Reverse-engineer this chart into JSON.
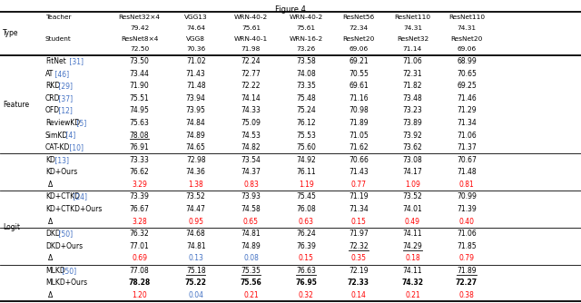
{
  "title": "Figure 4",
  "col_headers": [
    [
      "ResNet32×4",
      "VGG13",
      "WRN-40-2",
      "WRN-40-2",
      "ResNet56",
      "ResNet110",
      "ResNet110"
    ],
    [
      "79.42",
      "74.64",
      "75.61",
      "75.61",
      "72.34",
      "74.31",
      "74.31"
    ],
    [
      "ResNet8×4",
      "VGG8",
      "WRN-40-1",
      "WRN-16-2",
      "ResNet20",
      "ResNet32",
      "ResNet20"
    ],
    [
      "72.50",
      "70.36",
      "71.98",
      "73.26",
      "69.06",
      "71.14",
      "69.06"
    ]
  ],
  "rows": [
    {
      "method": "FitNet [31]",
      "ref_col": 7,
      "vals": [
        "73.50",
        "71.02",
        "72.24",
        "73.58",
        "69.21",
        "71.06",
        "68.99"
      ],
      "delta": false,
      "bold": [],
      "underline": [],
      "val_colors": [
        "k",
        "k",
        "k",
        "k",
        "k",
        "k",
        "k"
      ],
      "section": "Feature"
    },
    {
      "method": "AT [46]",
      "ref_col": 12,
      "vals": [
        "73.44",
        "71.43",
        "72.77",
        "74.08",
        "70.55",
        "72.31",
        "70.65"
      ],
      "delta": false,
      "bold": [],
      "underline": [],
      "val_colors": [
        "k",
        "k",
        "k",
        "k",
        "k",
        "k",
        "k"
      ],
      "section": "Feature"
    },
    {
      "method": "RKD [29]",
      "ref_col": 12,
      "vals": [
        "71.90",
        "71.48",
        "72.22",
        "73.35",
        "69.61",
        "71.82",
        "69.25"
      ],
      "delta": false,
      "bold": [],
      "underline": [],
      "val_colors": [
        "k",
        "k",
        "k",
        "k",
        "k",
        "k",
        "k"
      ],
      "section": "Feature"
    },
    {
      "method": "CRD [37]",
      "ref_col": 12,
      "vals": [
        "75.51",
        "73.94",
        "74.14",
        "75.48",
        "71.16",
        "73.48",
        "71.46"
      ],
      "delta": false,
      "bold": [],
      "underline": [],
      "val_colors": [
        "k",
        "k",
        "k",
        "k",
        "k",
        "k",
        "k"
      ],
      "section": "Feature"
    },
    {
      "method": "OFD [12]",
      "ref_col": 12,
      "vals": [
        "74.95",
        "73.95",
        "74.33",
        "75.24",
        "70.98",
        "73.23",
        "71.29"
      ],
      "delta": false,
      "bold": [],
      "underline": [],
      "val_colors": [
        "k",
        "k",
        "k",
        "k",
        "k",
        "k",
        "k"
      ],
      "section": "Feature"
    },
    {
      "method": "ReviewKD [5]",
      "ref_col": 12,
      "vals": [
        "75.63",
        "74.84",
        "75.09",
        "76.12",
        "71.89",
        "73.89",
        "71.34"
      ],
      "delta": false,
      "bold": [],
      "underline": [],
      "val_colors": [
        "k",
        "k",
        "k",
        "k",
        "k",
        "k",
        "k"
      ],
      "section": "Feature"
    },
    {
      "method": "SimKD [4]",
      "ref_col": 12,
      "vals": [
        "78.08",
        "74.89",
        "74.53",
        "75.53",
        "71.05",
        "73.92",
        "71.06"
      ],
      "delta": false,
      "bold": [],
      "underline": [
        0
      ],
      "val_colors": [
        "k",
        "k",
        "k",
        "k",
        "k",
        "k",
        "k"
      ],
      "section": "Feature"
    },
    {
      "method": "CAT-KD [10]",
      "ref_col": 12,
      "vals": [
        "76.91",
        "74.65",
        "74.82",
        "75.60",
        "71.62",
        "73.62",
        "71.37"
      ],
      "delta": false,
      "bold": [],
      "underline": [],
      "val_colors": [
        "k",
        "k",
        "k",
        "k",
        "k",
        "k",
        "k"
      ],
      "section": "Feature"
    },
    {
      "method": "KD [13]",
      "ref_col": 12,
      "vals": [
        "73.33",
        "72.98",
        "73.54",
        "74.92",
        "70.66",
        "73.08",
        "70.67"
      ],
      "delta": false,
      "bold": [],
      "underline": [],
      "val_colors": [
        "k",
        "k",
        "k",
        "k",
        "k",
        "k",
        "k"
      ],
      "section": "Logit"
    },
    {
      "method": "KD+Ours",
      "ref_col": -1,
      "vals": [
        "76.62",
        "74.36",
        "74.37",
        "76.11",
        "71.43",
        "74.17",
        "71.48"
      ],
      "delta": false,
      "bold": [],
      "underline": [],
      "val_colors": [
        "k",
        "k",
        "k",
        "k",
        "k",
        "k",
        "k"
      ],
      "section": "Logit"
    },
    {
      "method": "Δ",
      "ref_col": -1,
      "vals": [
        "3.29",
        "1.38",
        "0.83",
        "1.19",
        "0.77",
        "1.09",
        "0.81"
      ],
      "delta": true,
      "bold": [],
      "underline": [],
      "val_colors": [
        "r",
        "r",
        "r",
        "r",
        "r",
        "r",
        "r"
      ],
      "section": "Logit"
    },
    {
      "method": "KD+CTKD [24]",
      "ref_col": 12,
      "vals": [
        "73.39",
        "73.52",
        "73.93",
        "75.45",
        "71.19",
        "73.52",
        "70.99"
      ],
      "delta": false,
      "bold": [],
      "underline": [],
      "val_colors": [
        "k",
        "k",
        "k",
        "k",
        "k",
        "k",
        "k"
      ],
      "section": "Logit"
    },
    {
      "method": "KD+CTKD+Ours",
      "ref_col": -1,
      "vals": [
        "76.67",
        "74.47",
        "74.58",
        "76.08",
        "71.34",
        "74.01",
        "71.39"
      ],
      "delta": false,
      "bold": [],
      "underline": [],
      "val_colors": [
        "k",
        "k",
        "k",
        "k",
        "k",
        "k",
        "k"
      ],
      "section": "Logit"
    },
    {
      "method": "Δ",
      "ref_col": -1,
      "vals": [
        "3.28",
        "0.95",
        "0.65",
        "0.63",
        "0.15",
        "0.49",
        "0.40"
      ],
      "delta": true,
      "bold": [],
      "underline": [],
      "val_colors": [
        "r",
        "r",
        "r",
        "r",
        "r",
        "r",
        "r"
      ],
      "section": "Logit"
    },
    {
      "method": "DKD [50]",
      "ref_col": 12,
      "vals": [
        "76.32",
        "74.68",
        "74.81",
        "76.24",
        "71.97",
        "74.11",
        "71.06"
      ],
      "delta": false,
      "bold": [],
      "underline": [],
      "val_colors": [
        "k",
        "k",
        "k",
        "k",
        "k",
        "k",
        "k"
      ],
      "section": "Logit"
    },
    {
      "method": "DKD+Ours",
      "ref_col": -1,
      "vals": [
        "77.01",
        "74.81",
        "74.89",
        "76.39",
        "72.32",
        "74.29",
        "71.85"
      ],
      "delta": false,
      "bold": [],
      "underline": [
        4,
        5
      ],
      "val_colors": [
        "k",
        "k",
        "k",
        "k",
        "k",
        "k",
        "k"
      ],
      "section": "Logit"
    },
    {
      "method": "Δ",
      "ref_col": -1,
      "vals": [
        "0.69",
        "0.13",
        "0.08",
        "0.15",
        "0.35",
        "0.18",
        "0.79"
      ],
      "delta": true,
      "bold": [],
      "underline": [],
      "val_colors": [
        "r",
        "b",
        "b",
        "r",
        "r",
        "r",
        "r"
      ],
      "section": "Logit"
    },
    {
      "method": "MLKD [50]",
      "ref_col": 12,
      "vals": [
        "77.08",
        "75.18",
        "75.35",
        "76.63",
        "72.19",
        "74.11",
        "71.89"
      ],
      "delta": false,
      "bold": [],
      "underline": [
        1,
        2,
        3,
        6
      ],
      "val_colors": [
        "k",
        "k",
        "k",
        "k",
        "k",
        "k",
        "k"
      ],
      "section": "Logit"
    },
    {
      "method": "MLKD+Ours",
      "ref_col": -1,
      "vals": [
        "78.28",
        "75.22",
        "75.56",
        "76.95",
        "72.33",
        "74.32",
        "72.27"
      ],
      "delta": false,
      "bold": [
        0,
        1,
        2,
        3,
        4,
        5,
        6
      ],
      "underline": [],
      "val_colors": [
        "k",
        "k",
        "k",
        "k",
        "k",
        "k",
        "k"
      ],
      "section": "Logit"
    },
    {
      "method": "Δ",
      "ref_col": -1,
      "vals": [
        "1.20",
        "0.04",
        "0.21",
        "0.32",
        "0.14",
        "0.21",
        "0.38"
      ],
      "delta": true,
      "bold": [],
      "underline": [],
      "val_colors": [
        "r",
        "b",
        "r",
        "r",
        "r",
        "r",
        "r"
      ],
      "section": "Logit"
    }
  ],
  "thin_line_after_rows": [
    7,
    10,
    13,
    16
  ],
  "thick_line_after_rows": [
    7
  ],
  "blue_color": "#4472C4",
  "red_color": "#FF0000",
  "black_color": "#000000"
}
